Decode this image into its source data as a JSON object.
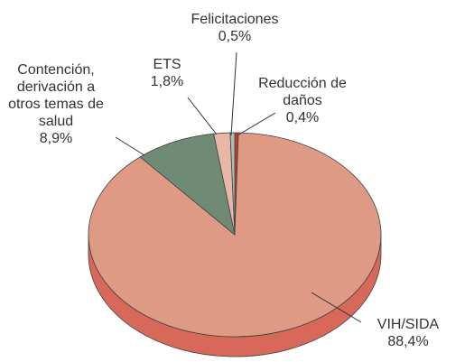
{
  "chart_data": {
    "type": "pie",
    "categories": [
      "Reducción de daños",
      "VIH/SIDA",
      "Contención, derivación a otros temas de salud",
      "ETS",
      "Felicitaciones"
    ],
    "values": [
      0.4,
      88.4,
      8.9,
      1.8,
      0.5
    ],
    "value_labels": [
      "0,4%",
      "88,4%",
      "8,9%",
      "1,8%",
      "0,5%"
    ],
    "colors": [
      "#c0392b",
      "#de9a84",
      "#6f8b76",
      "#e8b7a7",
      "#a8bfae"
    ]
  }
}
